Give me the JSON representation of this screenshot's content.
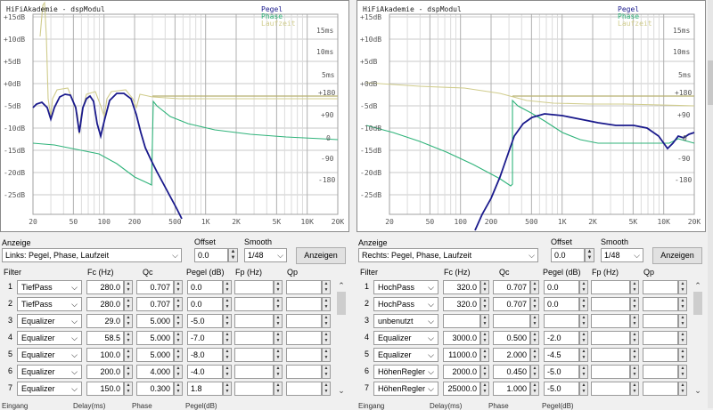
{
  "plot_axes": {
    "y_ticks": [
      "+15dB",
      "+10dB",
      "+5dB",
      "+0dB",
      "-5dB",
      "-10dB",
      "-15dB",
      "-20dB",
      "-25dB"
    ],
    "x_ticks": [
      "20",
      "50",
      "100",
      "200",
      "500",
      "1K",
      "2K",
      "5K",
      "10K",
      "20K"
    ],
    "phase_ticks": [
      "+180",
      "+90",
      "0",
      "-90",
      "-180"
    ],
    "time_ticks": [
      "15ms",
      "10ms",
      "5ms"
    ],
    "legend": [
      "Pegel",
      "Phase",
      "Laufzeit"
    ],
    "colors": {
      "pegel": "#1a1a8c",
      "phase": "#2fb37a",
      "laufzeit": "#d0cc8c"
    }
  },
  "panels": [
    {
      "title": "HiFiAkademie - dspModul",
      "anzeige_label": "Anzeige",
      "anzeige_value": "Links: Pegel, Phase, Laufzeit",
      "offset_label": "Offset",
      "offset_value": "0.0",
      "smooth_label": "Smooth",
      "smooth_value": "1/48",
      "button": "Anzeigen",
      "headers": {
        "filter": "Filter",
        "fc": "Fc (Hz)",
        "qc": "Qc",
        "pegel": "Pegel (dB)",
        "fp": "Fp (Hz)",
        "qp": "Qp"
      },
      "rows": [
        {
          "n": "1",
          "type": "TiefPass",
          "fc": "280.0",
          "qc": "0.707",
          "pegel": "0.0"
        },
        {
          "n": "2",
          "type": "TiefPass",
          "fc": "280.0",
          "qc": "0.707",
          "pegel": "0.0"
        },
        {
          "n": "3",
          "type": "Equalizer",
          "fc": "29.0",
          "qc": "5.000",
          "pegel": "-5.0"
        },
        {
          "n": "4",
          "type": "Equalizer",
          "fc": "58.5",
          "qc": "5.000",
          "pegel": "-7.0"
        },
        {
          "n": "5",
          "type": "Equalizer",
          "fc": "100.0",
          "qc": "5.000",
          "pegel": "-8.0"
        },
        {
          "n": "6",
          "type": "Equalizer",
          "fc": "200.0",
          "qc": "4.000",
          "pegel": "-4.0"
        },
        {
          "n": "7",
          "type": "Equalizer",
          "fc": "150.0",
          "qc": "0.300",
          "pegel": "1.8"
        }
      ],
      "footer": [
        "Eingang",
        "Delay(ms)",
        "Phase",
        "Pegel(dB)"
      ]
    },
    {
      "title": "HiFiAkademie - dspModul",
      "anzeige_label": "Anzeige",
      "anzeige_value": "Rechts: Pegel, Phase, Laufzeit",
      "offset_label": "Offset",
      "offset_value": "0.0",
      "smooth_label": "Smooth",
      "smooth_value": "1/48",
      "button": "Anzeigen",
      "headers": {
        "filter": "Filter",
        "fc": "Fc (Hz)",
        "qc": "Qc",
        "pegel": "Pegel (dB)",
        "fp": "Fp (Hz)",
        "qp": "Qp"
      },
      "rows": [
        {
          "n": "1",
          "type": "HochPass",
          "fc": "320.0",
          "qc": "0.707",
          "pegel": "0.0"
        },
        {
          "n": "2",
          "type": "HochPass",
          "fc": "320.0",
          "qc": "0.707",
          "pegel": "0.0"
        },
        {
          "n": "3",
          "type": "unbenutzt",
          "fc": "",
          "qc": "",
          "pegel": ""
        },
        {
          "n": "4",
          "type": "Equalizer",
          "fc": "3000.0",
          "qc": "0.500",
          "pegel": "-2.0"
        },
        {
          "n": "5",
          "type": "Equalizer",
          "fc": "11000.0",
          "qc": "2.000",
          "pegel": "-4.5"
        },
        {
          "n": "6",
          "type": "HöhenRegler",
          "fc": "2000.0",
          "qc": "0.450",
          "pegel": "-5.0"
        },
        {
          "n": "7",
          "type": "HöhenRegler",
          "fc": "25000.0",
          "qc": "1.000",
          "pegel": "-5.0"
        }
      ],
      "footer": [
        "Eingang",
        "Delay(ms)",
        "Phase",
        "Pegel(dB)"
      ]
    }
  ]
}
